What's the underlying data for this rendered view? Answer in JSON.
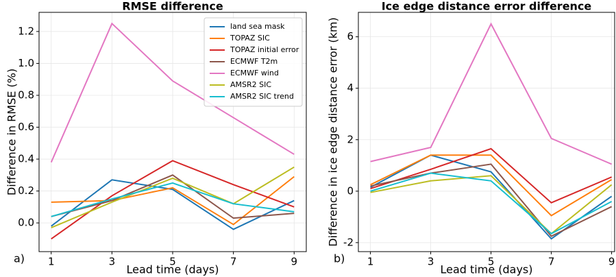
{
  "chart_data": [
    {
      "type": "line",
      "title": "RMSE difference",
      "panel_label": "a)",
      "xlabel": "Lead time (days)",
      "ylabel": "Difference in RMSE (%)",
      "x": [
        1,
        3,
        5,
        7,
        9
      ],
      "xlim": [
        0.6,
        9.4
      ],
      "xticks": [
        1,
        3,
        5,
        7,
        9
      ],
      "ylim": [
        -0.18,
        1.32
      ],
      "yticks": [
        {
          "value": 0,
          "label": "0.0"
        },
        0.2,
        0.4,
        0.6,
        0.8,
        {
          "value": 1,
          "label": "1.0"
        },
        1.2
      ],
      "grid": true,
      "legend": "upper right",
      "series": [
        {
          "name": "land sea mask",
          "color": "#1f77b4",
          "values": [
            -0.02,
            0.27,
            0.21,
            -0.04,
            0.14
          ]
        },
        {
          "name": "TOPAZ SIC",
          "color": "#ff7f0e",
          "values": [
            0.13,
            0.14,
            0.22,
            -0.01,
            0.29
          ]
        },
        {
          "name": "TOPAZ initial error",
          "color": "#d62728",
          "values": [
            -0.1,
            0.17,
            0.39,
            0.24,
            0.1
          ]
        },
        {
          "name": "ECMWF T2m",
          "color": "#8c564b",
          "values": [
            0.04,
            0.14,
            0.3,
            0.03,
            0.06
          ]
        },
        {
          "name": "ECMWF wind",
          "color": "#e377c2",
          "values": [
            0.38,
            1.25,
            0.89,
            0.66,
            0.43
          ]
        },
        {
          "name": "AMSR2 SIC",
          "color": "#bcbd22",
          "values": [
            -0.03,
            0.13,
            0.28,
            0.12,
            0.35
          ]
        },
        {
          "name": "AMSR2 SIC trend",
          "color": "#17becf",
          "values": [
            0.04,
            0.15,
            0.25,
            0.12,
            0.07
          ]
        }
      ]
    },
    {
      "type": "line",
      "title": "Ice edge distance error difference",
      "panel_label": "b)",
      "xlabel": "Lead time (days)",
      "ylabel": "Difference in ice edge distance error (km)",
      "x": [
        1,
        3,
        5,
        7,
        9
      ],
      "xlim": [
        0.6,
        9.1
      ],
      "xticks": [
        1,
        3,
        5,
        7,
        9
      ],
      "ylim": [
        -2.35,
        6.95
      ],
      "yticks": [
        -2,
        0,
        2,
        4,
        6
      ],
      "grid": true,
      "series": [
        {
          "color": "#1f77b4",
          "values": [
            0.15,
            1.4,
            0.75,
            -1.85,
            -0.2
          ]
        },
        {
          "color": "#ff7f0e",
          "values": [
            0.25,
            1.4,
            1.4,
            -0.95,
            0.45
          ]
        },
        {
          "color": "#d62728",
          "values": [
            0.1,
            0.85,
            1.65,
            -0.45,
            0.55
          ]
        },
        {
          "color": "#8c564b",
          "values": [
            0.2,
            0.7,
            1.05,
            -1.75,
            -0.6
          ]
        },
        {
          "color": "#e377c2",
          "values": [
            1.15,
            1.7,
            6.5,
            2.05,
            1.05
          ]
        },
        {
          "color": "#bcbd22",
          "values": [
            -0.05,
            0.4,
            0.6,
            -1.65,
            0.25
          ]
        },
        {
          "color": "#17becf",
          "values": [
            0.0,
            0.7,
            0.4,
            -1.65,
            -0.4
          ]
        }
      ]
    }
  ]
}
